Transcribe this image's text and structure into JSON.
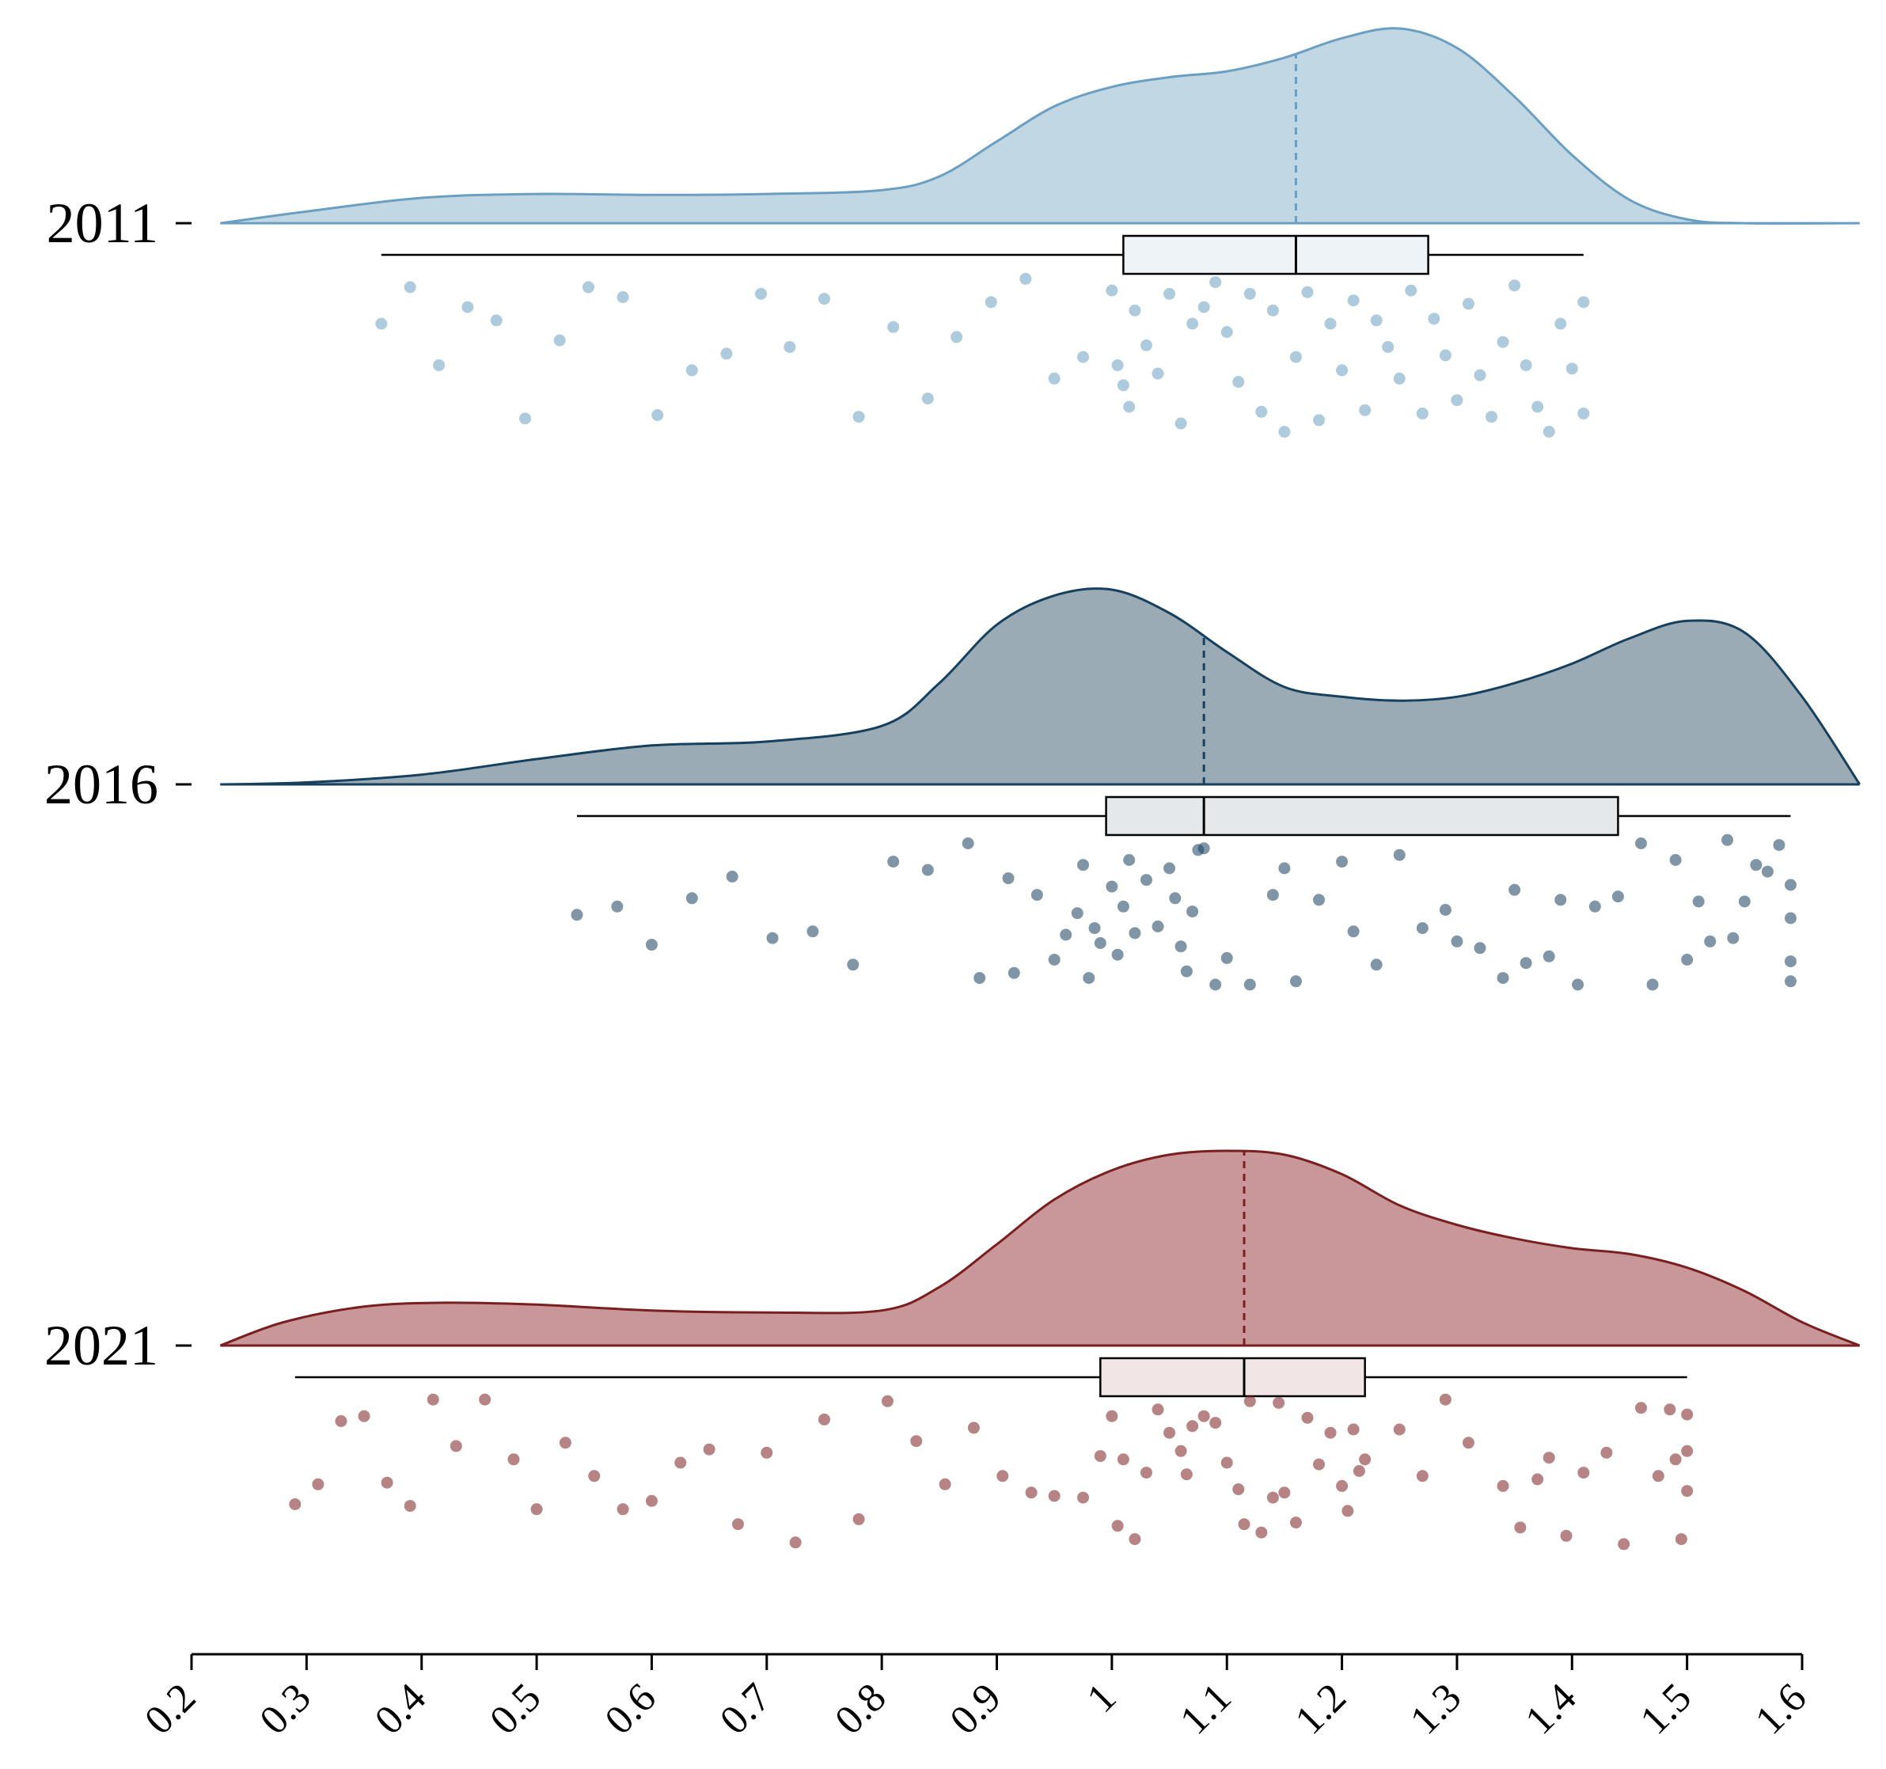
{
  "chart_data": {
    "type": "raincloud",
    "title": "",
    "xlabel": "",
    "ylabel": "",
    "xlim": [
      0.2,
      1.65
    ],
    "x_ticks": [
      "0.2",
      "0.3",
      "0.4",
      "0.5",
      "0.6",
      "0.7",
      "0.8",
      "0.9",
      "1",
      "1.1",
      "1.2",
      "1.3",
      "1.4",
      "1.5",
      "1.6"
    ],
    "series": [
      {
        "name": "2011",
        "color": "#6b9fc1",
        "fill": "#c2d7e4",
        "box_fill": "#edf3f7",
        "median": 1.16,
        "q1": 1.01,
        "q3": 1.275,
        "whisker_low": 0.365,
        "whisker_high": 1.41,
        "density": [
          [
            0.225,
            0
          ],
          [
            0.3,
            0.06
          ],
          [
            0.4,
            0.13
          ],
          [
            0.5,
            0.15
          ],
          [
            0.6,
            0.145
          ],
          [
            0.7,
            0.15
          ],
          [
            0.8,
            0.17
          ],
          [
            0.85,
            0.24
          ],
          [
            0.9,
            0.42
          ],
          [
            0.95,
            0.6
          ],
          [
            1.0,
            0.7
          ],
          [
            1.05,
            0.75
          ],
          [
            1.1,
            0.78
          ],
          [
            1.15,
            0.85
          ],
          [
            1.2,
            0.95
          ],
          [
            1.25,
            1.0
          ],
          [
            1.3,
            0.9
          ],
          [
            1.35,
            0.65
          ],
          [
            1.4,
            0.35
          ],
          [
            1.45,
            0.12
          ],
          [
            1.5,
            0.02
          ],
          [
            1.55,
            0
          ],
          [
            1.65,
            0
          ]
        ],
        "points": [
          [
            0.365,
            0.3
          ],
          [
            0.39,
            0.08
          ],
          [
            0.415,
            0.55
          ],
          [
            0.44,
            0.2
          ],
          [
            0.465,
            0.28
          ],
          [
            0.49,
            0.87
          ],
          [
            0.52,
            0.4
          ],
          [
            0.545,
            0.08
          ],
          [
            0.575,
            0.14
          ],
          [
            0.605,
            0.85
          ],
          [
            0.635,
            0.58
          ],
          [
            0.665,
            0.48
          ],
          [
            0.695,
            0.12
          ],
          [
            0.72,
            0.44
          ],
          [
            0.75,
            0.15
          ],
          [
            0.78,
            0.86
          ],
          [
            0.81,
            0.32
          ],
          [
            0.84,
            0.75
          ],
          [
            0.865,
            0.38
          ],
          [
            0.895,
            0.17
          ],
          [
            0.925,
            0.03
          ],
          [
            0.95,
            0.63
          ],
          [
            0.975,
            0.5
          ],
          [
            1.0,
            0.1
          ],
          [
            1.005,
            0.55
          ],
          [
            1.01,
            0.67
          ],
          [
            1.015,
            0.8
          ],
          [
            1.02,
            0.22
          ],
          [
            1.03,
            0.43
          ],
          [
            1.04,
            0.6
          ],
          [
            1.05,
            0.12
          ],
          [
            1.06,
            0.9
          ],
          [
            1.07,
            0.3
          ],
          [
            1.08,
            0.2
          ],
          [
            1.09,
            0.05
          ],
          [
            1.1,
            0.35
          ],
          [
            1.11,
            0.65
          ],
          [
            1.12,
            0.12
          ],
          [
            1.13,
            0.83
          ],
          [
            1.14,
            0.22
          ],
          [
            1.15,
            0.95
          ],
          [
            1.16,
            0.5
          ],
          [
            1.17,
            0.11
          ],
          [
            1.18,
            0.88
          ],
          [
            1.19,
            0.3
          ],
          [
            1.2,
            0.58
          ],
          [
            1.21,
            0.16
          ],
          [
            1.22,
            0.82
          ],
          [
            1.23,
            0.28
          ],
          [
            1.24,
            0.44
          ],
          [
            1.25,
            0.63
          ],
          [
            1.26,
            0.1
          ],
          [
            1.27,
            0.84
          ],
          [
            1.28,
            0.27
          ],
          [
            1.29,
            0.49
          ],
          [
            1.3,
            0.76
          ],
          [
            1.31,
            0.18
          ],
          [
            1.32,
            0.61
          ],
          [
            1.33,
            0.86
          ],
          [
            1.34,
            0.41
          ],
          [
            1.35,
            0.07
          ],
          [
            1.36,
            0.55
          ],
          [
            1.37,
            0.8
          ],
          [
            1.38,
            0.95
          ],
          [
            1.39,
            0.3
          ],
          [
            1.4,
            0.57
          ],
          [
            1.41,
            0.17
          ],
          [
            1.41,
            0.84
          ]
        ]
      },
      {
        "name": "2016",
        "color": "#17405e",
        "fill": "#9aabb5",
        "box_fill": "#e4e8eb",
        "median": 1.08,
        "q1": 0.995,
        "q3": 1.44,
        "whisker_low": 0.535,
        "whisker_high": 1.59,
        "density": [
          [
            0.225,
            0
          ],
          [
            0.3,
            0.01
          ],
          [
            0.4,
            0.05
          ],
          [
            0.5,
            0.13
          ],
          [
            0.6,
            0.2
          ],
          [
            0.7,
            0.22
          ],
          [
            0.8,
            0.3
          ],
          [
            0.85,
            0.52
          ],
          [
            0.9,
            0.82
          ],
          [
            0.95,
            0.97
          ],
          [
            1.0,
            1.0
          ],
          [
            1.05,
            0.88
          ],
          [
            1.1,
            0.68
          ],
          [
            1.15,
            0.5
          ],
          [
            1.2,
            0.45
          ],
          [
            1.25,
            0.43
          ],
          [
            1.3,
            0.45
          ],
          [
            1.35,
            0.52
          ],
          [
            1.4,
            0.62
          ],
          [
            1.45,
            0.75
          ],
          [
            1.5,
            0.84
          ],
          [
            1.55,
            0.78
          ],
          [
            1.6,
            0.45
          ],
          [
            1.65,
            0
          ]
        ],
        "points": [
          [
            0.535,
            0.48
          ],
          [
            0.57,
            0.43
          ],
          [
            0.6,
            0.66
          ],
          [
            0.635,
            0.38
          ],
          [
            0.67,
            0.25
          ],
          [
            0.705,
            0.62
          ],
          [
            0.74,
            0.58
          ],
          [
            0.775,
            0.78
          ],
          [
            0.81,
            0.16
          ],
          [
            0.84,
            0.21
          ],
          [
            0.875,
            0.05
          ],
          [
            0.885,
            0.86
          ],
          [
            0.91,
            0.26
          ],
          [
            0.915,
            0.83
          ],
          [
            0.935,
            0.36
          ],
          [
            0.95,
            0.75
          ],
          [
            0.96,
            0.6
          ],
          [
            0.97,
            0.47
          ],
          [
            0.975,
            0.18
          ],
          [
            0.98,
            0.86
          ],
          [
            0.985,
            0.56
          ],
          [
            0.99,
            0.65
          ],
          [
            1.0,
            0.31
          ],
          [
            1.005,
            0.72
          ],
          [
            1.01,
            0.43
          ],
          [
            1.015,
            0.15
          ],
          [
            1.02,
            0.59
          ],
          [
            1.03,
            0.27
          ],
          [
            1.04,
            0.55
          ],
          [
            1.05,
            0.2
          ],
          [
            1.055,
            0.38
          ],
          [
            1.06,
            0.67
          ],
          [
            1.065,
            0.82
          ],
          [
            1.07,
            0.46
          ],
          [
            1.075,
            0.09
          ],
          [
            1.08,
            0.08
          ],
          [
            1.09,
            0.9
          ],
          [
            1.1,
            0.74
          ],
          [
            1.12,
            0.9
          ],
          [
            1.14,
            0.36
          ],
          [
            1.15,
            0.2
          ],
          [
            1.16,
            0.88
          ],
          [
            1.18,
            0.39
          ],
          [
            1.2,
            0.16
          ],
          [
            1.21,
            0.58
          ],
          [
            1.23,
            0.78
          ],
          [
            1.25,
            0.12
          ],
          [
            1.27,
            0.56
          ],
          [
            1.29,
            0.45
          ],
          [
            1.3,
            0.64
          ],
          [
            1.32,
            0.68
          ],
          [
            1.34,
            0.86
          ],
          [
            1.35,
            0.33
          ],
          [
            1.36,
            0.77
          ],
          [
            1.38,
            0.73
          ],
          [
            1.39,
            0.39
          ],
          [
            1.405,
            0.9
          ],
          [
            1.42,
            0.43
          ],
          [
            1.44,
            0.37
          ],
          [
            1.46,
            0.05
          ],
          [
            1.47,
            0.9
          ],
          [
            1.49,
            0.15
          ],
          [
            1.5,
            0.75
          ],
          [
            1.51,
            0.4
          ],
          [
            1.52,
            0.64
          ],
          [
            1.535,
            0.03
          ],
          [
            1.54,
            0.62
          ],
          [
            1.55,
            0.4
          ],
          [
            1.56,
            0.18
          ],
          [
            1.57,
            0.22
          ],
          [
            1.58,
            0.06
          ],
          [
            1.59,
            0.76
          ],
          [
            1.59,
            0.3
          ],
          [
            1.59,
            0.5
          ],
          [
            1.59,
            0.88
          ]
        ]
      },
      {
        "name": "2021",
        "color": "#7a1f1f",
        "fill": "#c9979a",
        "box_fill": "#f1e5e6",
        "median": 1.115,
        "q1": 0.99,
        "q3": 1.22,
        "whisker_low": 0.29,
        "whisker_high": 1.5,
        "density": [
          [
            0.225,
            0
          ],
          [
            0.28,
            0.12
          ],
          [
            0.35,
            0.2
          ],
          [
            0.42,
            0.22
          ],
          [
            0.5,
            0.21
          ],
          [
            0.6,
            0.18
          ],
          [
            0.7,
            0.17
          ],
          [
            0.8,
            0.18
          ],
          [
            0.85,
            0.3
          ],
          [
            0.9,
            0.52
          ],
          [
            0.95,
            0.75
          ],
          [
            1.0,
            0.9
          ],
          [
            1.05,
            0.98
          ],
          [
            1.1,
            1.0
          ],
          [
            1.15,
            0.98
          ],
          [
            1.2,
            0.88
          ],
          [
            1.25,
            0.72
          ],
          [
            1.3,
            0.62
          ],
          [
            1.35,
            0.55
          ],
          [
            1.4,
            0.5
          ],
          [
            1.45,
            0.47
          ],
          [
            1.5,
            0.4
          ],
          [
            1.55,
            0.28
          ],
          [
            1.6,
            0.12
          ],
          [
            1.65,
            0
          ]
        ],
        "points": [
          [
            0.29,
            0.65
          ],
          [
            0.31,
            0.53
          ],
          [
            0.33,
            0.15
          ],
          [
            0.35,
            0.12
          ],
          [
            0.37,
            0.52
          ],
          [
            0.39,
            0.66
          ],
          [
            0.41,
            0.02
          ],
          [
            0.43,
            0.3
          ],
          [
            0.455,
            0.02
          ],
          [
            0.48,
            0.38
          ],
          [
            0.5,
            0.68
          ],
          [
            0.525,
            0.28
          ],
          [
            0.55,
            0.48
          ],
          [
            0.575,
            0.68
          ],
          [
            0.6,
            0.63
          ],
          [
            0.625,
            0.4
          ],
          [
            0.65,
            0.32
          ],
          [
            0.675,
            0.77
          ],
          [
            0.7,
            0.34
          ],
          [
            0.725,
            0.88
          ],
          [
            0.75,
            0.14
          ],
          [
            0.78,
            0.74
          ],
          [
            0.805,
            0.03
          ],
          [
            0.83,
            0.27
          ],
          [
            0.855,
            0.53
          ],
          [
            0.88,
            0.19
          ],
          [
            0.905,
            0.48
          ],
          [
            0.93,
            0.58
          ],
          [
            0.95,
            0.6
          ],
          [
            0.975,
            0.61
          ],
          [
            0.99,
            0.36
          ],
          [
            1.0,
            0.12
          ],
          [
            1.005,
            0.78
          ],
          [
            1.01,
            0.38
          ],
          [
            1.02,
            0.86
          ],
          [
            1.03,
            0.46
          ],
          [
            1.04,
            0.08
          ],
          [
            1.05,
            0.22
          ],
          [
            1.06,
            0.33
          ],
          [
            1.065,
            0.47
          ],
          [
            1.07,
            0.18
          ],
          [
            1.08,
            0.12
          ],
          [
            1.09,
            0.16
          ],
          [
            1.1,
            0.4
          ],
          [
            1.11,
            0.56
          ],
          [
            1.115,
            0.77
          ],
          [
            1.12,
            0.03
          ],
          [
            1.13,
            0.82
          ],
          [
            1.14,
            0.61
          ],
          [
            1.145,
            0.04
          ],
          [
            1.15,
            0.58
          ],
          [
            1.16,
            0.76
          ],
          [
            1.17,
            0.13
          ],
          [
            1.18,
            0.41
          ],
          [
            1.19,
            0.22
          ],
          [
            1.2,
            0.54
          ],
          [
            1.205,
            0.69
          ],
          [
            1.21,
            0.2
          ],
          [
            1.215,
            0.45
          ],
          [
            1.22,
            0.38
          ],
          [
            1.25,
            0.2
          ],
          [
            1.27,
            0.48
          ],
          [
            1.29,
            0.02
          ],
          [
            1.31,
            0.28
          ],
          [
            1.34,
            0.54
          ],
          [
            1.355,
            0.79
          ],
          [
            1.37,
            0.5
          ],
          [
            1.38,
            0.37
          ],
          [
            1.395,
            0.84
          ],
          [
            1.41,
            0.46
          ],
          [
            1.43,
            0.34
          ],
          [
            1.445,
            0.89
          ],
          [
            1.46,
            0.07
          ],
          [
            1.475,
            0.48
          ],
          [
            1.485,
            0.08
          ],
          [
            1.49,
            0.38
          ],
          [
            1.495,
            0.86
          ],
          [
            1.5,
            0.11
          ],
          [
            1.5,
            0.57
          ],
          [
            1.5,
            0.33
          ]
        ]
      }
    ]
  }
}
